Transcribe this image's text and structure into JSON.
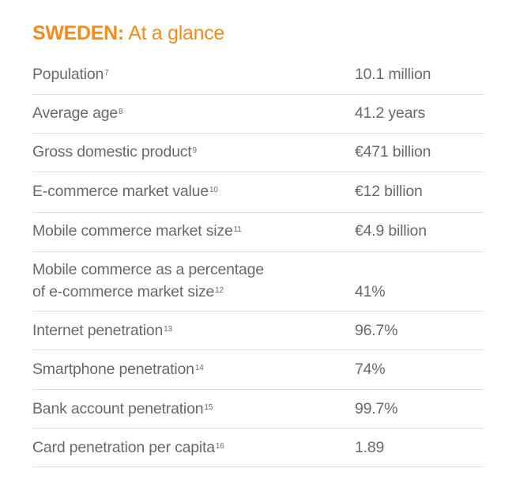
{
  "title": {
    "country": "SWEDEN:",
    "subtitle": " At a glance"
  },
  "accent_color": "#f28c1c",
  "rows": [
    {
      "label": "Population",
      "note": "7",
      "value": "10.1 million"
    },
    {
      "label": "Average age",
      "note": "8",
      "value": "41.2 years"
    },
    {
      "label": "Gross domestic product",
      "note": "9",
      "value": "€471 billion"
    },
    {
      "label": "E-commerce market value",
      "note": "10",
      "value": "€12 billion"
    },
    {
      "label": "Mobile commerce market size",
      "note": "11",
      "value": "€4.9 billion"
    },
    {
      "label": "Mobile commerce as a percentage",
      "label2": "of e-commerce market size",
      "note": "12",
      "value": "41%"
    },
    {
      "label": "Internet penetration",
      "note": "13",
      "value": "96.7%"
    },
    {
      "label": "Smartphone penetration",
      "note": "14",
      "value": "74%"
    },
    {
      "label": "Bank account penetration",
      "note": "15",
      "value": "99.7%"
    },
    {
      "label": "Card penetration per capita",
      "note": "16",
      "value": "1.89"
    }
  ]
}
